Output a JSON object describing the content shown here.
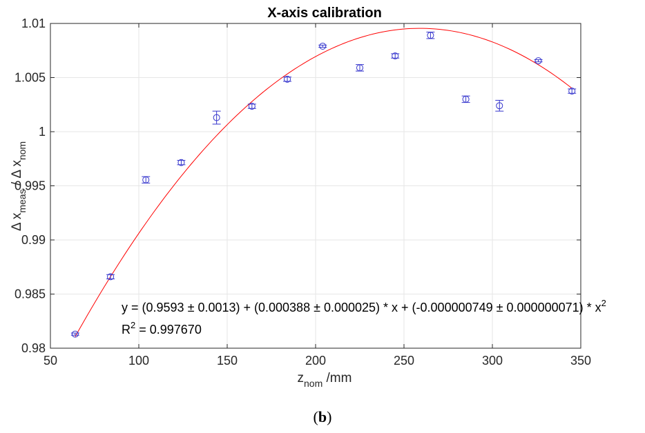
{
  "chart_data": {
    "type": "scatter",
    "title": "X-axis calibration",
    "xlabel": {
      "main": "z",
      "sub": "nom",
      "rest": " /mm"
    },
    "ylabel": {
      "d1": "Δ x",
      "sub1": "meas",
      "sep": " / Δ x",
      "sub2": "nom"
    },
    "xlim": [
      50,
      350
    ],
    "ylim": [
      0.98,
      1.01
    ],
    "xticks": [
      50,
      100,
      150,
      200,
      250,
      300,
      350
    ],
    "xtick_labels": [
      "50",
      "100",
      "150",
      "200",
      "250",
      "300",
      "350"
    ],
    "yticks": [
      0.98,
      0.985,
      0.99,
      0.995,
      1.0,
      1.005,
      1.01
    ],
    "ytick_labels": [
      "0.98",
      "0.985",
      "0.99",
      "0.995",
      "1",
      "1.005",
      "1.01"
    ],
    "grid": true,
    "series": [
      {
        "type": "errorbar",
        "color": "#3333cc",
        "x": [
          64,
          84,
          104,
          124,
          144,
          164,
          184,
          204,
          225,
          245,
          265,
          285,
          304,
          326,
          345
        ],
        "y": [
          0.9813,
          0.9866,
          0.99555,
          0.99715,
          1.0013,
          1.00235,
          1.00485,
          1.0079,
          1.0059,
          1.007,
          1.0089,
          1.003,
          1.0024,
          1.00655,
          1.00375
        ],
        "yerr": [
          0.0001,
          0.0002,
          0.0003,
          0.0002,
          0.0006,
          0.0002,
          0.0002,
          0.0001,
          0.0003,
          0.0002,
          0.0003,
          0.0003,
          0.0005,
          0.0001,
          0.0002
        ]
      },
      {
        "type": "fit",
        "color": "#ff0000",
        "coefficients": [
          0.9593,
          0.000388,
          -7.49e-07
        ],
        "x_range": [
          64,
          345
        ]
      }
    ],
    "annotations": {
      "equation": "y = (0.9593 ± 0.0013) + (0.000388 ± 0.000025) * x + (-0.000000749 ± 0.000000071) * x",
      "equation_sup": "2",
      "r2_label": "R",
      "r2_sup": "2",
      "r2_value": " = 0.997670"
    }
  },
  "caption": {
    "open": "(",
    "letter": "b",
    "close": ")"
  }
}
